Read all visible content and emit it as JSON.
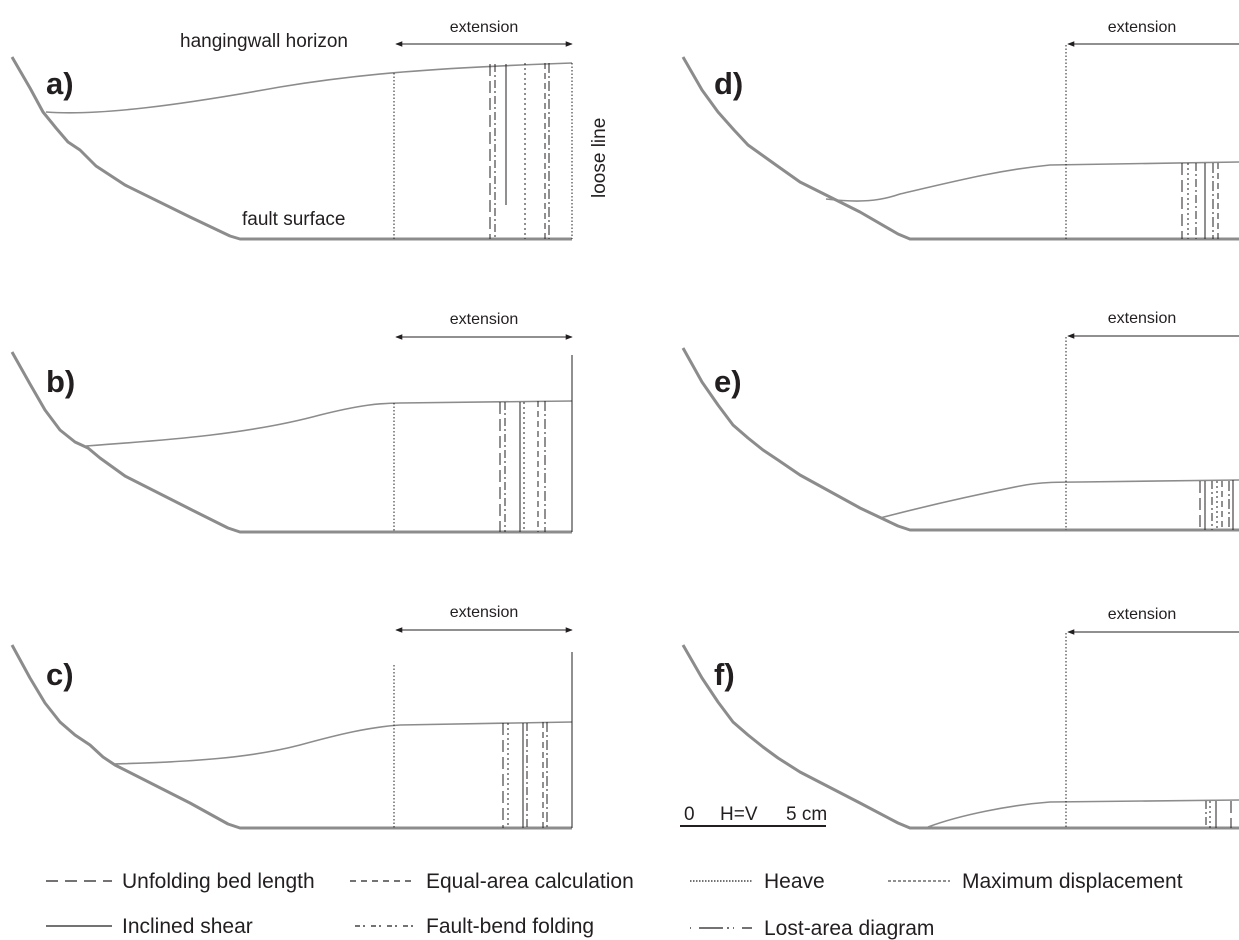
{
  "labels": {
    "hangingwall_horizon": "hangingwall horizon",
    "loose_line": "loose line",
    "fault_surface": "fault surface",
    "extension": "extension"
  },
  "panels": [
    {
      "id": "a",
      "label": "a)"
    },
    {
      "id": "b",
      "label": "b)"
    },
    {
      "id": "c",
      "label": "c)"
    },
    {
      "id": "d",
      "label": "d)"
    },
    {
      "id": "e",
      "label": "e)"
    },
    {
      "id": "f",
      "label": "f)"
    }
  ],
  "scale_bar": {
    "zero": "0",
    "ratio": "H=V",
    "length": "5 cm"
  },
  "legend": [
    {
      "label": "Unfolding bed length",
      "style": "long-dash"
    },
    {
      "label": "Equal-area calculation",
      "style": "dash"
    },
    {
      "label": "Heave",
      "style": "dotted"
    },
    {
      "label": "Maximum displacement",
      "style": "fine-dash"
    },
    {
      "label": "Inclined shear",
      "style": "solid"
    },
    {
      "label": "Fault-bend folding",
      "style": "dash-dot-dash"
    },
    {
      "label": "Lost-area diagram",
      "style": "dash-dot"
    }
  ],
  "colors": {
    "fault": "#8c8c8c",
    "horizon": "#8c8c8c",
    "lines": "#231f20"
  }
}
